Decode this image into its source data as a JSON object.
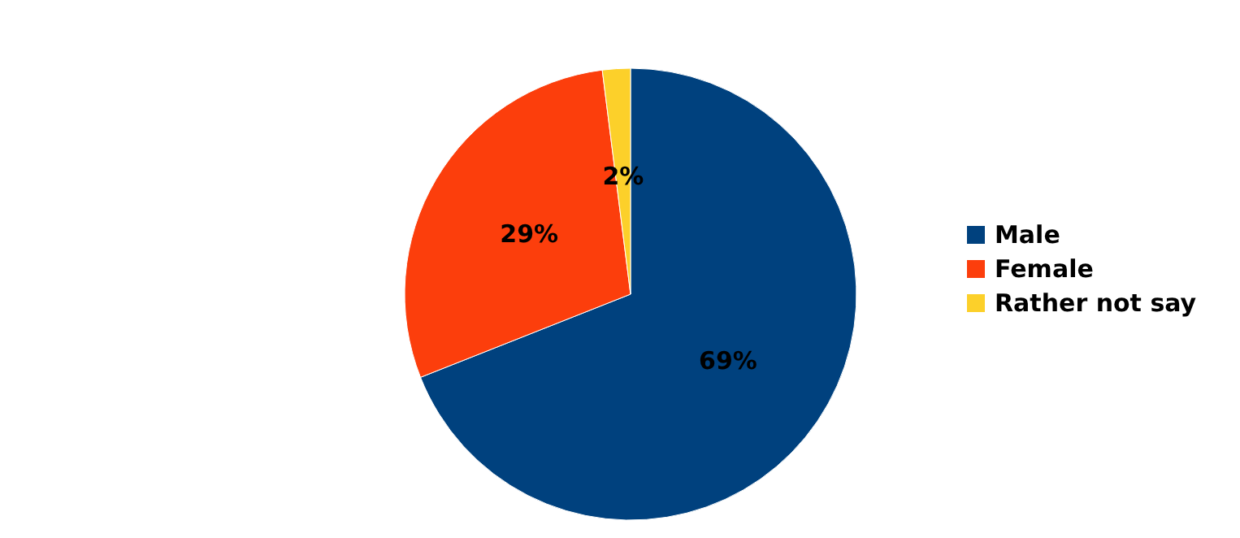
{
  "chart_data": {
    "type": "pie",
    "categories": [
      "Male",
      "Female",
      "Rather not say"
    ],
    "values": [
      69,
      29,
      2
    ],
    "colors": [
      "#00417e",
      "#fc3e0c",
      "#fcd02a"
    ],
    "value_labels": [
      "69%",
      "29%",
      "2%"
    ],
    "legend": "right"
  }
}
